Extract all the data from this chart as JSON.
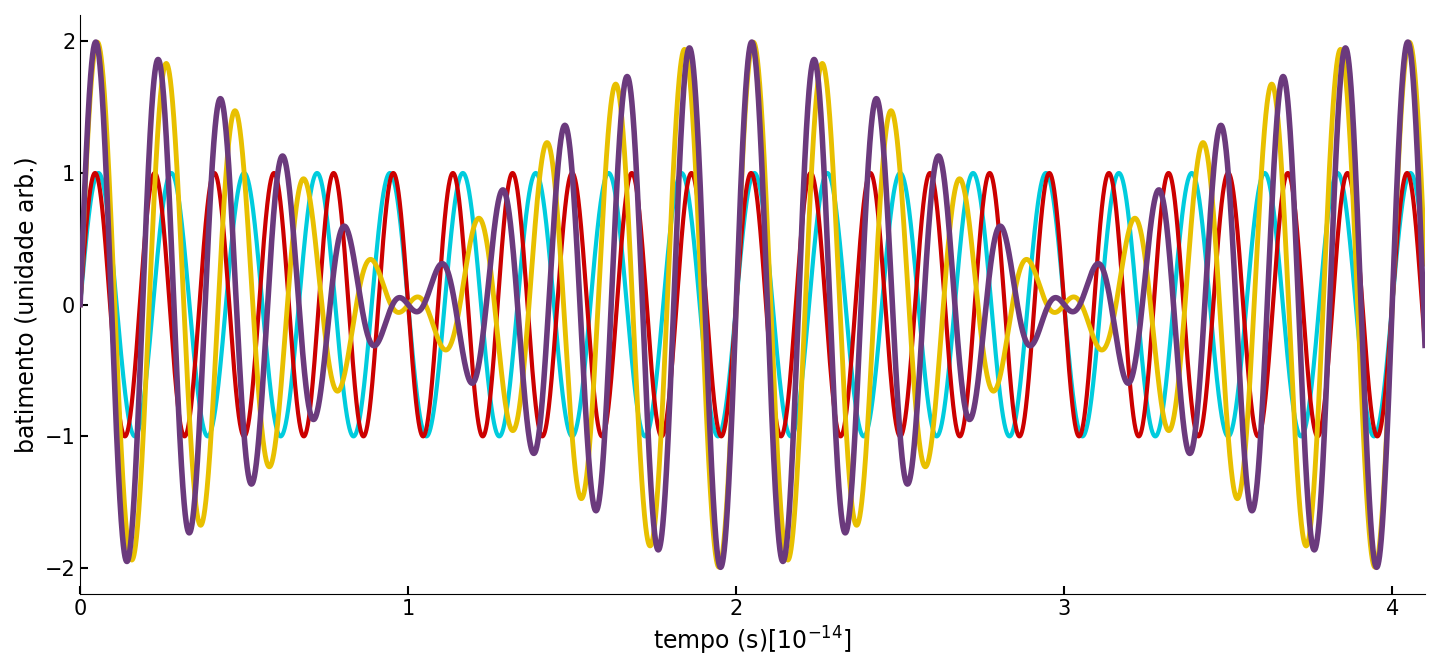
{
  "xlabel": "tempo (s)[10$^{-14}$]",
  "ylabel": "batimento (unidade arb.)",
  "xlim": [
    0,
    4.1
  ],
  "ylim": [
    -2.2,
    2.2
  ],
  "xticks": [
    0,
    1,
    2,
    3,
    4
  ],
  "yticks": [
    -2,
    -1,
    0,
    1,
    2
  ],
  "t_end": 4.1e-14,
  "n_points": 20000,
  "f1": 550000000000000.0,
  "f2": 500000000000000.0,
  "f3": 450000000000000.0,
  "color_purple": "#6B3A7D",
  "color_yellow": "#E8C000",
  "color_red": "#CC0000",
  "color_cyan": "#00CCDD",
  "lw_beat": 3.5,
  "lw_wave": 3.0,
  "background_color": "#ffffff",
  "label_fontsize": 17,
  "tick_fontsize": 15
}
